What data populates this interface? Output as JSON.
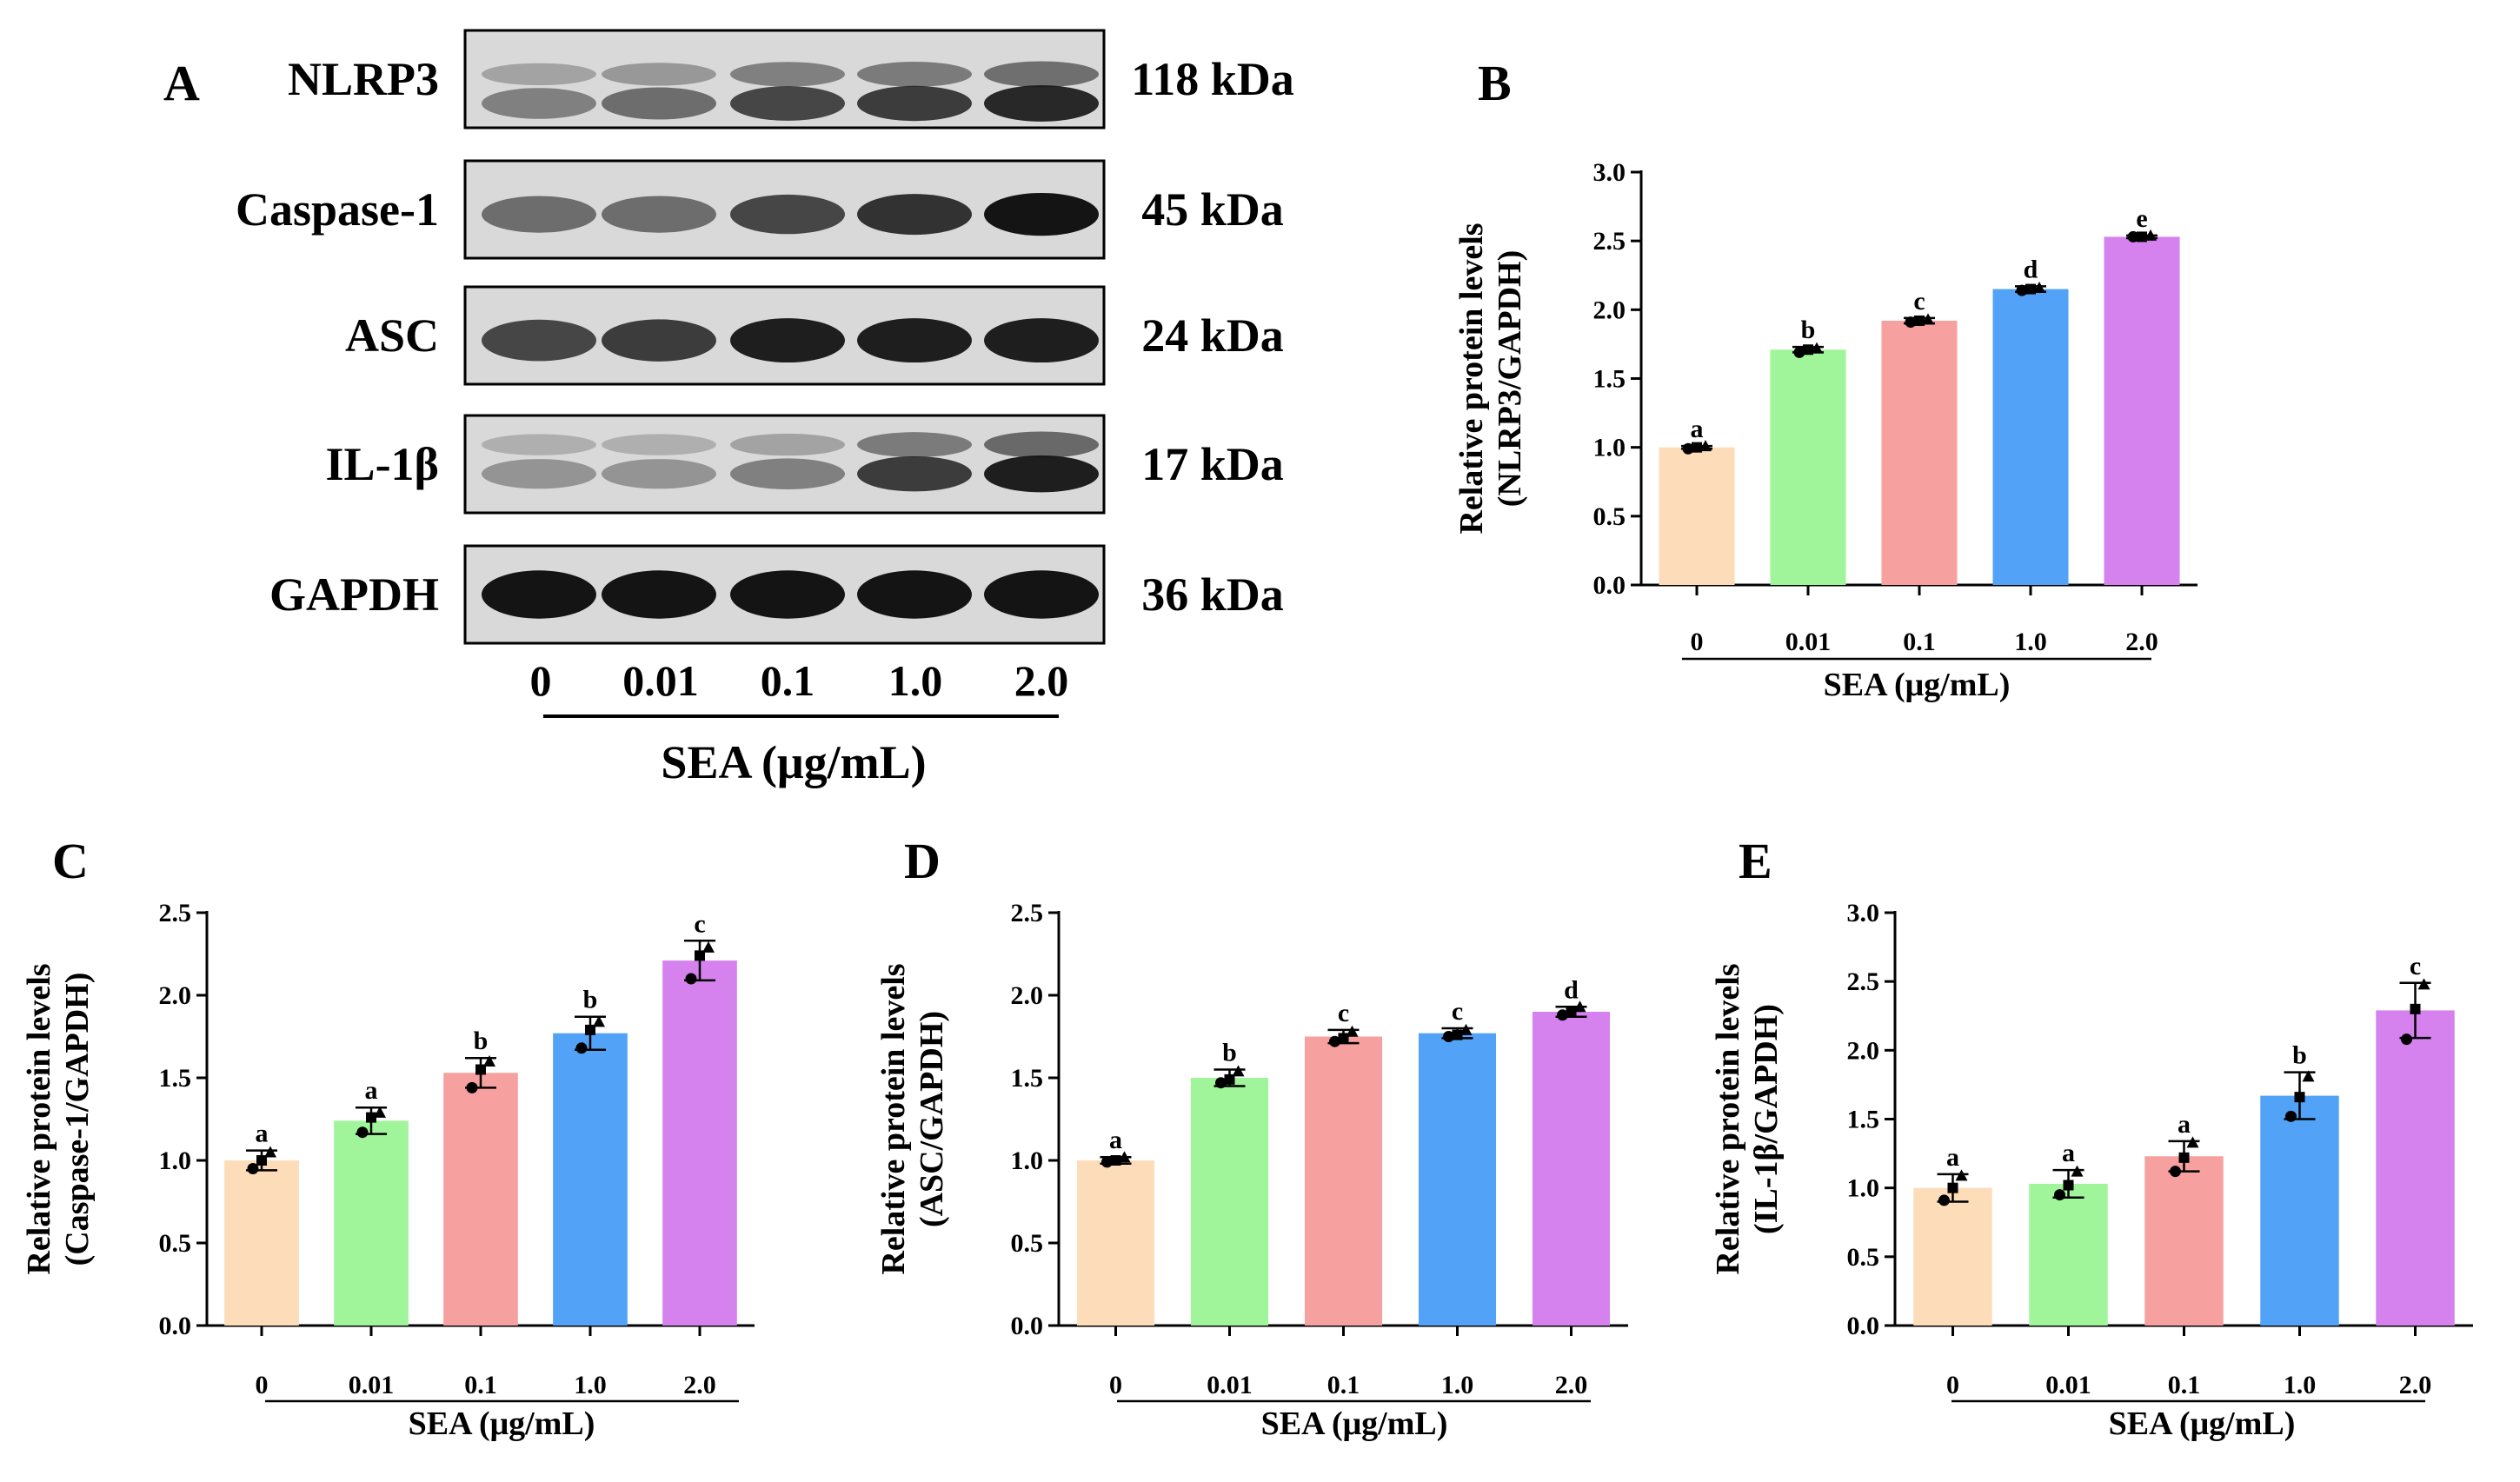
{
  "figure": {
    "x_axis_label": "SEA (μg/mL)",
    "y_axis_label_line1": "Relative protein levels"
  },
  "western_blot": {
    "panel_label": "A",
    "rows": [
      {
        "protein": "NLRP3",
        "mw": "118 kDa"
      },
      {
        "protein": "Caspase-1",
        "mw": "45 kDa"
      },
      {
        "protein": "ASC",
        "mw": "24 kDa"
      },
      {
        "protein": "IL-1β",
        "mw": "17 kDa"
      },
      {
        "protein": "GAPDH",
        "mw": "36 kDa"
      }
    ],
    "lanes": [
      "0",
      "0.01",
      "0.1",
      "1.0",
      "2.0"
    ],
    "xlabel": "SEA (μg/mL)"
  },
  "chart_data": [
    {
      "panel": "B",
      "type": "bar",
      "categories": [
        "0",
        "0.01",
        "0.1",
        "1.0",
        "2.0"
      ],
      "values": [
        1.0,
        1.71,
        1.92,
        2.15,
        2.53
      ],
      "errors": [
        0.01,
        0.02,
        0.02,
        0.02,
        0.01
      ],
      "letters": [
        "a",
        "b",
        "c",
        "d",
        "e"
      ],
      "points": [
        [
          0.99,
          1.0,
          1.01
        ],
        [
          1.69,
          1.71,
          1.72
        ],
        [
          1.91,
          1.92,
          1.93
        ],
        [
          2.14,
          2.15,
          2.16
        ],
        [
          2.53,
          2.53,
          2.54
        ]
      ],
      "ylim": [
        0,
        3.0
      ],
      "yticks": [
        "0.0",
        "0.5",
        "1.0",
        "1.5",
        "2.0",
        "2.5",
        "3.0"
      ],
      "ylabel_line2": "(NLRP3/GAPDH)",
      "xlabel": "SEA (μg/mL)"
    },
    {
      "panel": "C",
      "type": "bar",
      "categories": [
        "0",
        "0.01",
        "0.1",
        "1.0",
        "2.0"
      ],
      "values": [
        1.0,
        1.24,
        1.53,
        1.77,
        2.21
      ],
      "errors": [
        0.06,
        0.08,
        0.09,
        0.1,
        0.12
      ],
      "letters": [
        "a",
        "a",
        "b",
        "b",
        "c"
      ],
      "points": [
        [
          0.95,
          1.0,
          1.05
        ],
        [
          1.17,
          1.26,
          1.29
        ],
        [
          1.44,
          1.55,
          1.6
        ],
        [
          1.68,
          1.79,
          1.84
        ],
        [
          2.1,
          2.24,
          2.29
        ]
      ],
      "ylim": [
        0,
        2.5
      ],
      "yticks": [
        "0.0",
        "0.5",
        "1.0",
        "1.5",
        "2.0",
        "2.5"
      ],
      "ylabel_line2": "(Caspase-1/GAPDH)",
      "xlabel": "SEA (μg/mL)"
    },
    {
      "panel": "D",
      "type": "bar",
      "categories": [
        "0",
        "0.01",
        "0.1",
        "1.0",
        "2.0"
      ],
      "values": [
        1.0,
        1.5,
        1.75,
        1.77,
        1.9
      ],
      "errors": [
        0.02,
        0.05,
        0.04,
        0.03,
        0.03
      ],
      "letters": [
        "a",
        "b",
        "c",
        "c",
        "d"
      ],
      "points": [
        [
          0.99,
          1.0,
          1.02
        ],
        [
          1.47,
          1.49,
          1.54
        ],
        [
          1.72,
          1.74,
          1.78
        ],
        [
          1.75,
          1.76,
          1.79
        ],
        [
          1.88,
          1.9,
          1.93
        ]
      ],
      "ylim": [
        0,
        2.5
      ],
      "yticks": [
        "0.0",
        "0.5",
        "1.0",
        "1.5",
        "2.0",
        "2.5"
      ],
      "ylabel_line2": "(ASC/GAPDH)",
      "xlabel": "SEA (μg/mL)"
    },
    {
      "panel": "E",
      "type": "bar",
      "categories": [
        "0",
        "0.01",
        "0.1",
        "1.0",
        "2.0"
      ],
      "values": [
        1.0,
        1.03,
        1.23,
        1.67,
        2.29
      ],
      "errors": [
        0.1,
        0.1,
        0.11,
        0.17,
        0.2
      ],
      "letters": [
        "a",
        "a",
        "a",
        "b",
        "c"
      ],
      "points": [
        [
          0.91,
          1.0,
          1.09
        ],
        [
          0.95,
          1.02,
          1.12
        ],
        [
          1.12,
          1.22,
          1.33
        ],
        [
          1.52,
          1.66,
          1.81
        ],
        [
          2.08,
          2.3,
          2.48
        ]
      ],
      "ylim": [
        0,
        3.0
      ],
      "yticks": [
        "0.0",
        "0.5",
        "1.0",
        "1.5",
        "2.0",
        "2.5",
        "3.0"
      ],
      "ylabel_line2": "(IL-1β/GAPDH)",
      "xlabel": "SEA (μg/mL)"
    }
  ],
  "colors": {
    "bars": [
      "#fddcb9",
      "#a0f59a",
      "#f7a0a0",
      "#52a3f8",
      "#d582ee"
    ],
    "axis": "#000000",
    "blot_bg": "#d9d9d9",
    "band": "#141414"
  }
}
